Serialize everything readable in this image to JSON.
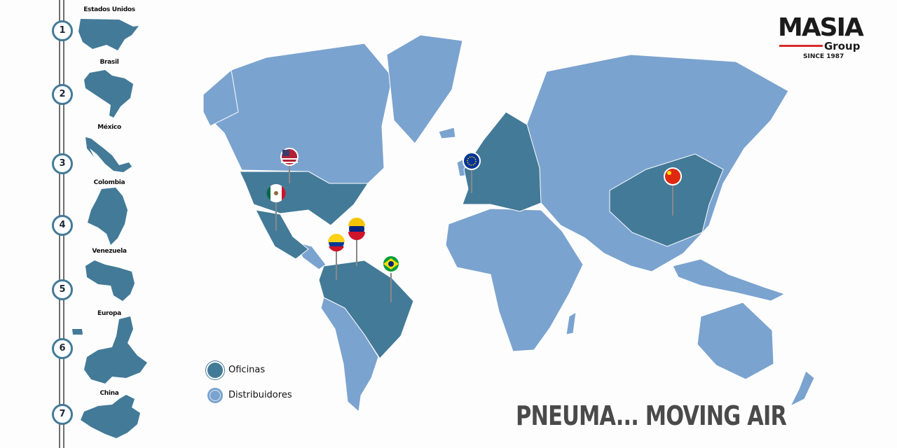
{
  "colors": {
    "office": "#437a98",
    "distributor": "#7ba3cf",
    "accent": "#d92b2b"
  },
  "logo": {
    "name": "MASIA",
    "sub": "Group",
    "since": "SINCE 1987"
  },
  "timeline": [
    {
      "number": "1",
      "country": "Estados Unidos"
    },
    {
      "number": "2",
      "country": "Brasil"
    },
    {
      "number": "3",
      "country": "México"
    },
    {
      "number": "4",
      "country": "Colombia"
    },
    {
      "number": "5",
      "country": "Venezuela"
    },
    {
      "number": "6",
      "country": "Europa"
    },
    {
      "number": "7",
      "country": "China"
    }
  ],
  "legend": [
    {
      "label": "Oficinas",
      "color": "#437a98"
    },
    {
      "label": "Distribuidores",
      "color": "#7ba3cf"
    }
  ],
  "pins": [
    "usa-flag",
    "mexico-flag",
    "venezuela-flag",
    "colombia-flag",
    "brazil-flag",
    "eu-flag",
    "china-flag"
  ],
  "slogan": "PNEUMA... MOVING AIR"
}
